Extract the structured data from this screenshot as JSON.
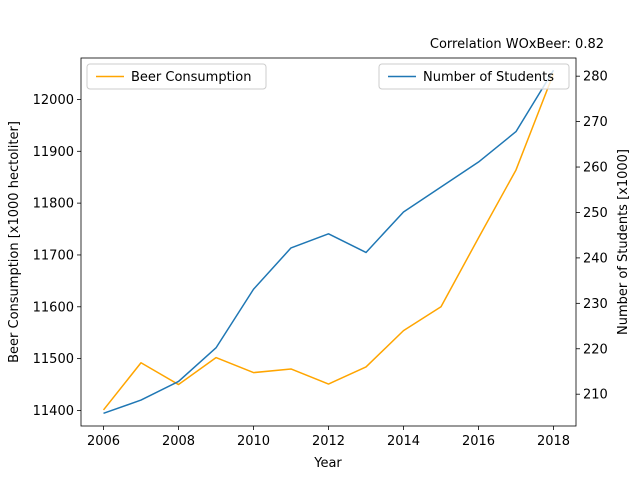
{
  "chart_data": {
    "type": "line",
    "annotation": "Correlation WOxBeer: 0.82",
    "xlabel": "Year",
    "ylabel_left": "Beer Consumption [x1000 hectoliter]",
    "ylabel_right": "Number of Students [x1000]",
    "x": [
      2006,
      2007,
      2008,
      2009,
      2010,
      2011,
      2012,
      2013,
      2014,
      2015,
      2016,
      2017,
      2018
    ],
    "xticks": [
      2006,
      2008,
      2010,
      2012,
      2014,
      2016,
      2018
    ],
    "xlim": [
      2005.4,
      2018.6
    ],
    "ylim_left": [
      11370,
      12080
    ],
    "yticks_left": [
      11400,
      11500,
      11600,
      11700,
      11800,
      11900,
      12000
    ],
    "ylim_right": [
      203,
      284
    ],
    "yticks_right": [
      210,
      220,
      230,
      240,
      250,
      260,
      270,
      280
    ],
    "series": [
      {
        "name": "Beer Consumption",
        "axis": "left",
        "color": "#FFA500",
        "values": [
          11401,
          11492,
          11450,
          11502,
          11473,
          11480,
          11451,
          11484,
          11554,
          11600,
          11733,
          11864,
          12050
        ]
      },
      {
        "name": "Number of Students",
        "axis": "right",
        "color": "#1f77b4",
        "values": [
          205.8,
          208.7,
          212.8,
          220.2,
          233.1,
          242.2,
          245.3,
          241.2,
          250.1,
          255.6,
          261.1,
          267.8,
          281.3
        ]
      }
    ],
    "legend_left": "upper-left",
    "legend_right": "upper-right",
    "grid": false
  }
}
